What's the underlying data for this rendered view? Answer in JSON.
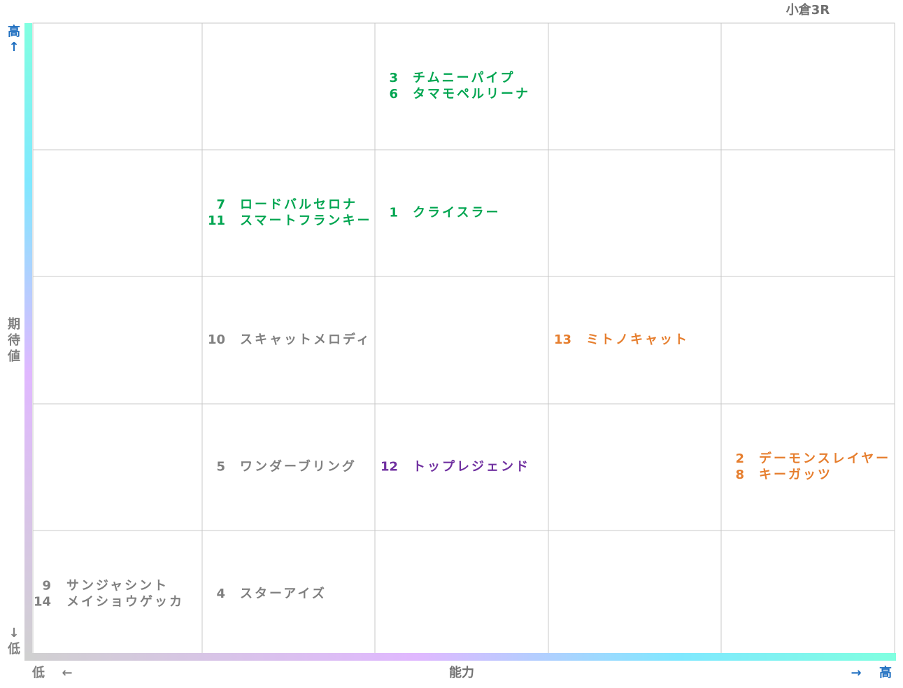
{
  "title": "小倉3R",
  "y_axis": {
    "high": "高",
    "high_arrow": "↑",
    "label": [
      "期",
      "待",
      "値"
    ],
    "low_arrow": "↓",
    "low": "低"
  },
  "x_axis": {
    "low": "低",
    "low_arrow": "←",
    "label": "能力",
    "high_arrow": "→",
    "high": "高"
  },
  "grid": {
    "rows": [
      [
        [],
        [],
        [
          {
            "number": 3,
            "name": "チムニーパイプ",
            "color": "#00a550"
          },
          {
            "number": 6,
            "name": "タマモペルリーナ",
            "color": "#00a550"
          }
        ],
        [],
        []
      ],
      [
        [],
        [
          {
            "number": 7,
            "name": "ロードバルセロナ",
            "color": "#00a550"
          },
          {
            "number": 11,
            "name": "スマートフランキー",
            "color": "#00a550"
          }
        ],
        [
          {
            "number": 1,
            "name": "クライスラー",
            "color": "#00a550"
          }
        ],
        [],
        []
      ],
      [
        [],
        [
          {
            "number": 10,
            "name": "スキャットメロディ",
            "color": "#808080"
          }
        ],
        [],
        [
          {
            "number": 13,
            "name": "ミトノキャット",
            "color": "#e67e2e"
          }
        ],
        []
      ],
      [
        [],
        [
          {
            "number": 5,
            "name": "ワンダーブリング",
            "color": "#808080"
          }
        ],
        [
          {
            "number": 12,
            "name": "トップレジェンド",
            "color": "#7030a0"
          }
        ],
        [],
        [
          {
            "number": 2,
            "name": "デーモンスレイヤー",
            "color": "#e67e2e"
          },
          {
            "number": 8,
            "name": "キーガッツ",
            "color": "#e67e2e"
          }
        ]
      ],
      [
        [
          {
            "number": 9,
            "name": "サンジャシント",
            "color": "#808080"
          },
          {
            "number": 14,
            "name": "メイショウゲッカ",
            "color": "#808080"
          }
        ],
        [
          {
            "number": 4,
            "name": "スターアイズ",
            "color": "#808080"
          }
        ],
        [],
        [],
        []
      ]
    ]
  }
}
